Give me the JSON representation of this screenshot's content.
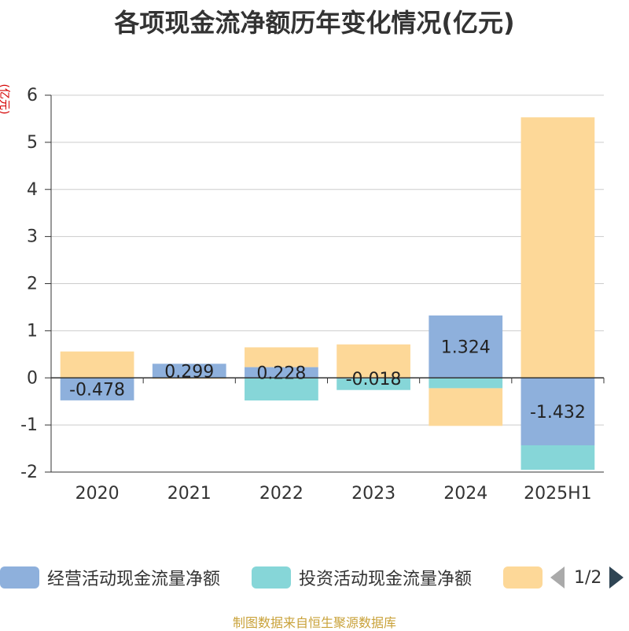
{
  "title": "各项现金流净额历年变化情况(亿元)",
  "y_unit": "(亿元)",
  "source": "制图数据来自恒生聚源数据库",
  "pager": {
    "text": "1/2"
  },
  "colors": {
    "operating": "#8eb0dc",
    "investing": "#86d6d8",
    "financing": "#fdd898"
  },
  "legend": [
    {
      "label": "经营活动现金流量净额",
      "color": "#8eb0dc"
    },
    {
      "label": "投资活动现金流量净额",
      "color": "#86d6d8"
    },
    {
      "label": "",
      "color": "#fdd898"
    }
  ],
  "chart_data": {
    "type": "bar",
    "stacked": true,
    "categories": [
      "2020",
      "2021",
      "2022",
      "2023",
      "2024",
      "2025H1"
    ],
    "ylim": [
      -2,
      6
    ],
    "yticks": [
      6,
      5,
      4,
      3,
      2,
      1,
      0,
      -1,
      -2
    ],
    "series": [
      {
        "name": "经营活动现金流量净额",
        "color": "#8eb0dc",
        "values": [
          -0.478,
          0.299,
          0.228,
          -0.018,
          1.324,
          -1.432
        ],
        "labels": [
          "-0.478",
          "0.299",
          "0.228",
          "-0.018",
          "1.324",
          "-1.432"
        ]
      },
      {
        "name": "投资活动现金流量净额",
        "color": "#86d6d8",
        "values": [
          0.0,
          0.0,
          -0.48,
          -0.24,
          -0.22,
          -0.52
        ]
      },
      {
        "color": "#fdd898",
        "values": [
          0.56,
          -0.02,
          0.42,
          0.71,
          -0.8,
          5.53
        ]
      }
    ]
  }
}
